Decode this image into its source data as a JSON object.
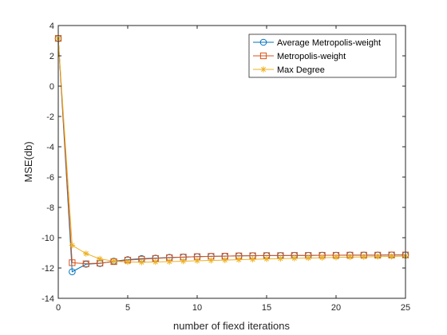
{
  "chart_data": {
    "type": "line",
    "title": "",
    "xlabel": "number of fiexd iterations",
    "ylabel": "MSE(db)",
    "xlim": [
      0,
      25
    ],
    "ylim": [
      -14,
      4
    ],
    "xticks": [
      0,
      5,
      10,
      15,
      20,
      25
    ],
    "yticks": [
      4,
      2,
      0,
      -2,
      -4,
      -6,
      -8,
      -10,
      -12,
      -14
    ],
    "grid": false,
    "legend_position": "top-right",
    "x": [
      0,
      1,
      2,
      3,
      4,
      5,
      6,
      7,
      8,
      9,
      10,
      11,
      12,
      13,
      14,
      15,
      16,
      17,
      18,
      19,
      20,
      21,
      22,
      23,
      24,
      25
    ],
    "series": [
      {
        "name": "Average Metropolis-weight",
        "color": "#0072BD",
        "marker": "circle",
        "values": [
          3.15,
          -12.25,
          -11.75,
          -11.7,
          -11.55,
          -11.45,
          -11.38,
          -11.35,
          -11.3,
          -11.28,
          -11.25,
          -11.23,
          -11.22,
          -11.2,
          -11.19,
          -11.18,
          -11.18,
          -11.17,
          -11.17,
          -11.16,
          -11.16,
          -11.15,
          -11.15,
          -11.15,
          -11.14,
          -11.14
        ]
      },
      {
        "name": "Metropolis-weight",
        "color": "#D95319",
        "marker": "square",
        "values": [
          3.15,
          -11.65,
          -11.72,
          -11.68,
          -11.58,
          -11.48,
          -11.42,
          -11.37,
          -11.32,
          -11.28,
          -11.25,
          -11.23,
          -11.22,
          -11.2,
          -11.19,
          -11.18,
          -11.18,
          -11.17,
          -11.17,
          -11.16,
          -11.16,
          -11.15,
          -11.15,
          -11.15,
          -11.14,
          -11.14
        ]
      },
      {
        "name": "Max Degree",
        "color": "#EDB120",
        "marker": "asterisk",
        "values": [
          3.15,
          -10.5,
          -11.05,
          -11.4,
          -11.55,
          -11.6,
          -11.62,
          -11.6,
          -11.58,
          -11.55,
          -11.52,
          -11.5,
          -11.48,
          -11.45,
          -11.43,
          -11.4,
          -11.38,
          -11.36,
          -11.34,
          -11.32,
          -11.3,
          -11.28,
          -11.27,
          -11.25,
          -11.24,
          -11.22
        ]
      }
    ]
  }
}
